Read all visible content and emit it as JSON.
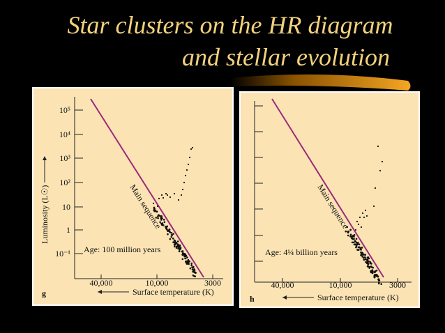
{
  "title": [
    "Star clusters on the HR diagram",
    "and stellar evolution"
  ],
  "panels": [
    {
      "label": "g",
      "yticks": [
        "10⁵",
        "10⁴",
        "10³",
        "10²",
        "10",
        "1",
        "10⁻¹"
      ],
      "ylabel": "Luminosity (L☉)",
      "xticks": [
        "40,000",
        "10,000",
        "3000"
      ],
      "xlabel": "Surface temperature (K)",
      "line_label": "Main sequence",
      "annotation": "Age: 100 million years"
    },
    {
      "label": "h",
      "xticks": [
        "40,000",
        "10,000",
        "3000"
      ],
      "xlabel": "Surface temperature (K)",
      "line_label": "Main sequence",
      "annotation": "Age: 4¼ billion years"
    }
  ]
}
